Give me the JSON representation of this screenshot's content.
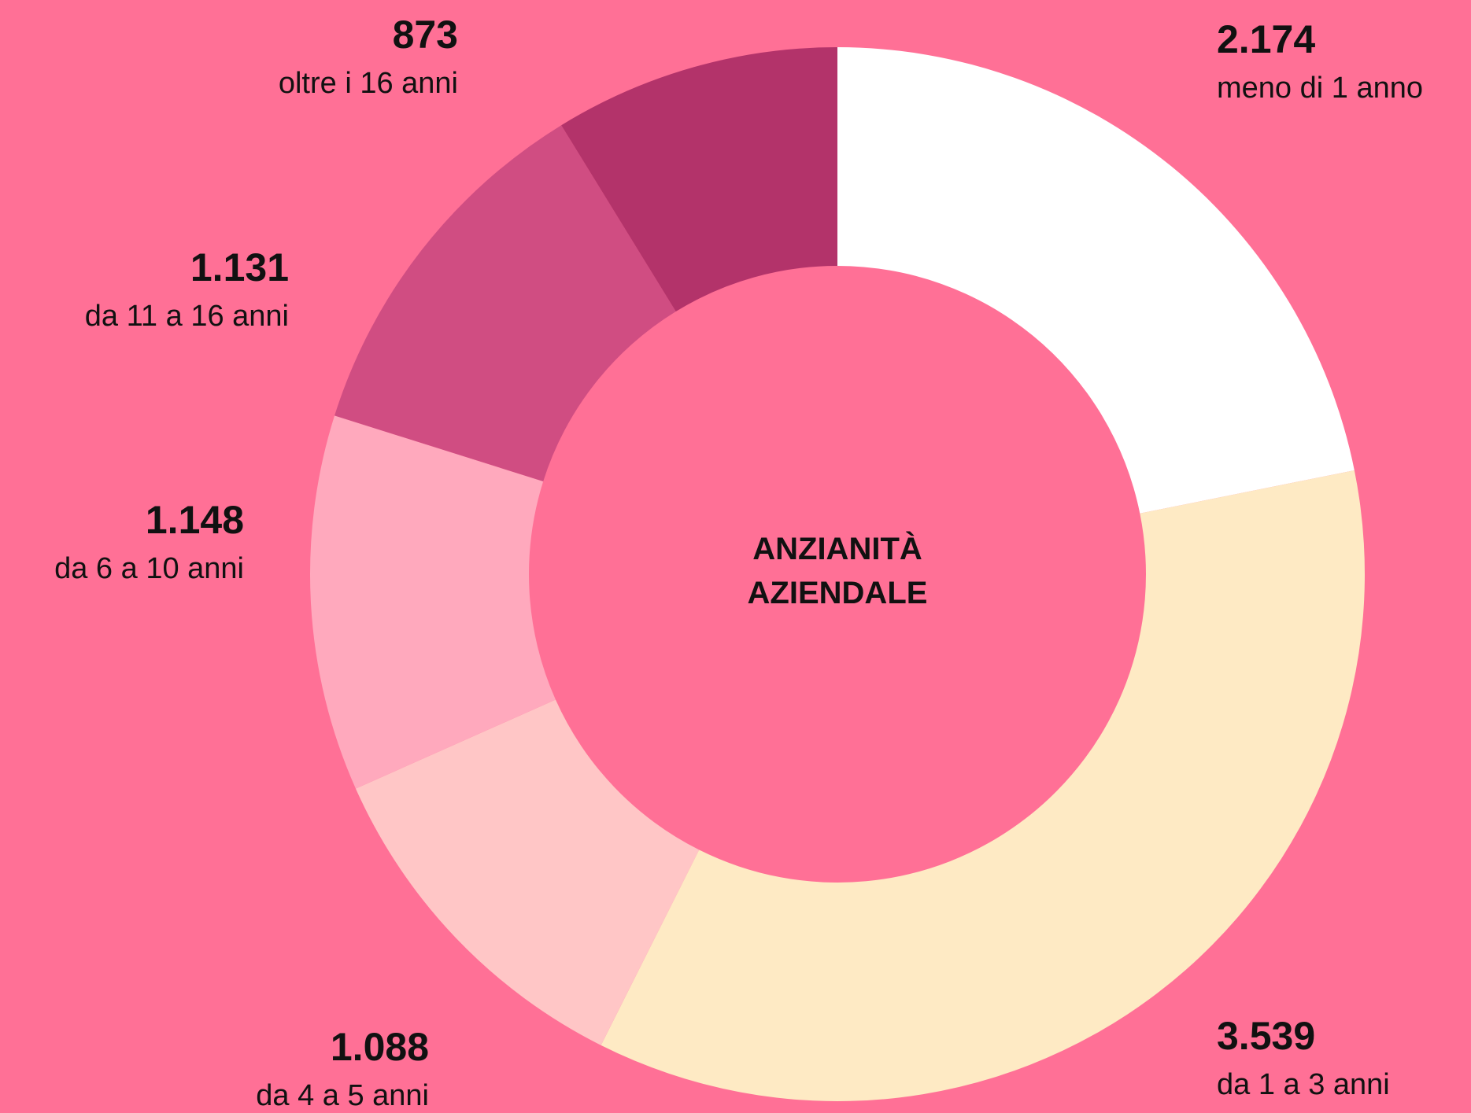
{
  "chart_data": {
    "type": "donut",
    "title": "ANZIANITÀ AZIENDALE",
    "categories": [
      "meno di 1 anno",
      "da 1 a 3 anni",
      "da 4 a 5 anni",
      "da 6 a 10 anni",
      "da 11 a 16 anni",
      "oltre i 16 anni"
    ],
    "values": [
      2174,
      3539,
      1088,
      1148,
      1131,
      873
    ],
    "value_labels": [
      "2.174",
      "3.539",
      "1.088",
      "1.148",
      "1.131",
      "873"
    ],
    "colors": [
      "#ffffff",
      "#feeac4",
      "#ffc6c6",
      "#ffa9bd",
      "#d04d82",
      "#b3336a"
    ]
  }
}
